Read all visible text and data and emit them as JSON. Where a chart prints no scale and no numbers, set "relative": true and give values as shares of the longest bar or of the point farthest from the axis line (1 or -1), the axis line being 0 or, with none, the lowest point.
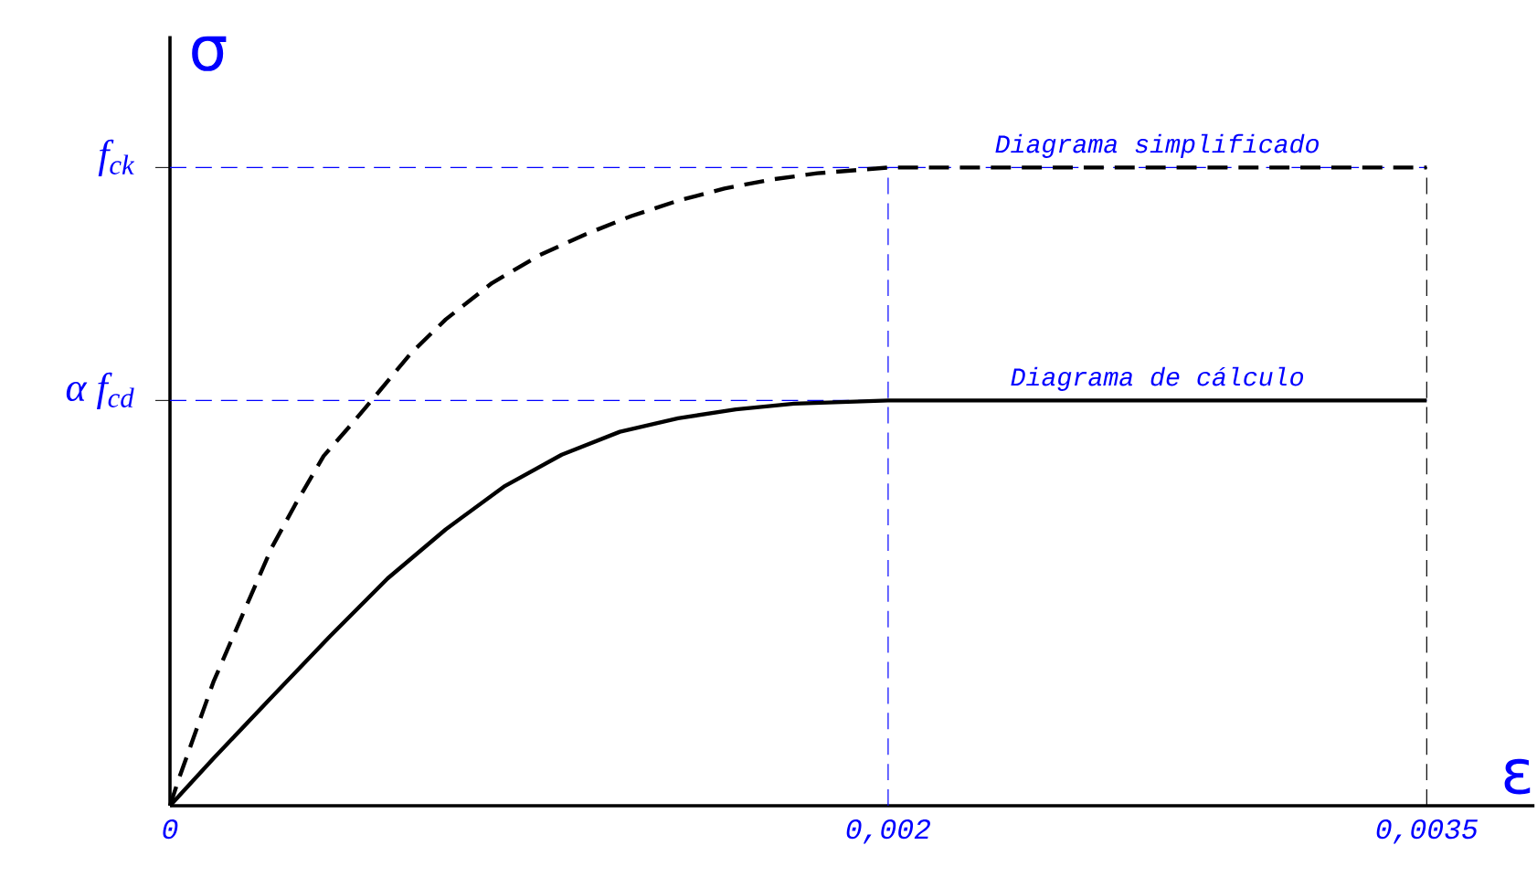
{
  "chart_data": {
    "type": "line",
    "relative": true,
    "xlabel": "ε",
    "ylabel": "σ",
    "xlim": [
      0,
      0.0038
    ],
    "xticks": [
      {
        "value": 0,
        "label": "0"
      },
      {
        "value": 0.002,
        "label": "0,002"
      },
      {
        "value": 0.0035,
        "label": "0,0035"
      }
    ],
    "legend": false,
    "grid": false,
    "series": [
      {
        "name": "Diagrama simplificado",
        "color": "#000000",
        "line_style": "dashed",
        "x": [
          0,
          2.4e-05,
          0.000121,
          0.000202,
          0.000283,
          0.000348,
          0.000428,
          0.000509,
          0.000566,
          0.000671,
          0.000768,
          0.000897,
          0.001027,
          0.001156,
          0.001285,
          0.001415,
          0.001544,
          0.001673,
          0.001803,
          0.002,
          0.0035
        ],
        "values": [
          0,
          0.041,
          0.194,
          0.299,
          0.404,
          0.471,
          0.548,
          0.6,
          0.638,
          0.709,
          0.762,
          0.819,
          0.862,
          0.895,
          0.924,
          0.948,
          0.967,
          0.981,
          0.991,
          1,
          1
        ]
      },
      {
        "name": "Diagrama de cálculo",
        "color": "#000000",
        "line_style": "solid",
        "x": [
          0,
          0.000121,
          0.000283,
          0.000445,
          0.000606,
          0.000768,
          0.00093,
          0.001091,
          0.001253,
          0.001415,
          0.001576,
          0.001738,
          0.002,
          0.0035
        ],
        "values": [
          0,
          0.074,
          0.17,
          0.265,
          0.356,
          0.433,
          0.5,
          0.55,
          0.586,
          0.607,
          0.621,
          0.63,
          0.635,
          0.635
        ]
      }
    ],
    "ref_lines": [
      {
        "axis": "y",
        "value": 1,
        "label": "f$_{ck}$",
        "color": "#0000ff",
        "line_style": "dashed"
      },
      {
        "axis": "y",
        "value": 0.635,
        "label": "α f$_{cd}$",
        "color": "#0000ff",
        "line_style": "dashed"
      },
      {
        "axis": "x",
        "value": 0.002,
        "color": "#0000ff",
        "line_style": "dashed"
      },
      {
        "axis": "x",
        "value": 0.0035,
        "color": "#000000",
        "line_style": "dashed"
      }
    ]
  }
}
